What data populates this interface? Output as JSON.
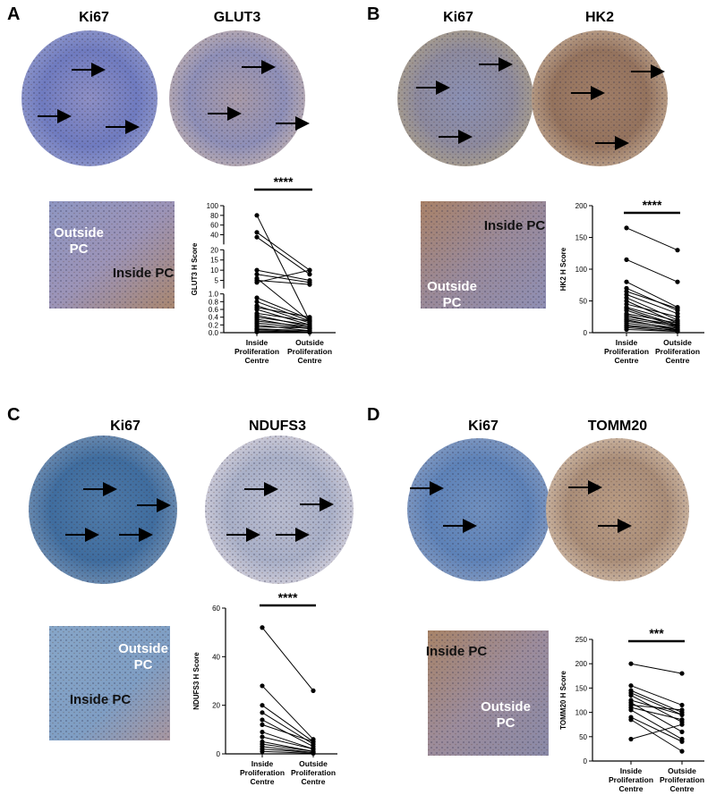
{
  "panels": [
    {
      "label": "A",
      "image_titles": [
        "Ki67",
        "GLUT3"
      ],
      "inset_labels": [
        {
          "text": "Outside PC",
          "color": "#ffffff"
        },
        {
          "text": "Inside PC",
          "color": "#111111"
        }
      ]
    },
    {
      "label": "B",
      "image_titles": [
        "Ki67",
        "HK2"
      ],
      "inset_labels": [
        {
          "text": "Inside PC",
          "color": "#111111"
        },
        {
          "text": "Outside PC",
          "color": "#ffffff"
        }
      ]
    },
    {
      "label": "C",
      "image_titles": [
        "Ki67",
        "NDUFS3"
      ],
      "inset_labels": [
        {
          "text": "Outside PC",
          "color": "#ffffff"
        },
        {
          "text": "Inside PC",
          "color": "#111111"
        }
      ]
    },
    {
      "label": "D",
      "image_titles": [
        "Ki67",
        "TOMM20"
      ],
      "inset_labels": [
        {
          "text": "Inside PC",
          "color": "#111111"
        },
        {
          "text": "Outside PC",
          "color": "#ffffff"
        }
      ]
    }
  ],
  "chart_data": [
    {
      "type": "paired",
      "y_label": "GLUT3 H Score",
      "significance": "****",
      "color": "#000000",
      "categories": [
        "Inside Proliferation Centre",
        "Outside Proliferation Centre"
      ],
      "ybreaks": [
        [
          0,
          1
        ],
        [
          1,
          20
        ],
        [
          20,
          100
        ]
      ],
      "ylim": [
        0,
        100
      ],
      "yticks": [
        {
          "value": 0,
          "label": "0.0"
        },
        0.2,
        0.4,
        0.6,
        0.8,
        {
          "value": 1,
          "label": "1.0"
        },
        5,
        10,
        15,
        20,
        40,
        60,
        80,
        100
      ],
      "values": [
        [
          80,
          0.3
        ],
        [
          45,
          10
        ],
        [
          35,
          8
        ],
        [
          10,
          5
        ],
        [
          8,
          4
        ],
        [
          6,
          0.3
        ],
        [
          5,
          3
        ],
        [
          4,
          10
        ],
        [
          0.9,
          0.35
        ],
        [
          0.8,
          0.3
        ],
        [
          0.7,
          0.25
        ],
        [
          0.65,
          0.4
        ],
        [
          0.6,
          0.2
        ],
        [
          0.5,
          0.3
        ],
        [
          0.45,
          0.15
        ],
        [
          0.4,
          0.2
        ],
        [
          0.35,
          0.1
        ],
        [
          0.3,
          0.15
        ],
        [
          0.25,
          0.1
        ],
        [
          0.2,
          0.05
        ],
        [
          0.15,
          0.12
        ],
        [
          0.1,
          0.05
        ],
        [
          0.08,
          0.02
        ],
        [
          0.05,
          0.01
        ],
        [
          0.02,
          0.01
        ]
      ]
    },
    {
      "type": "paired",
      "y_label": "HK2 H Score",
      "significance": "****",
      "color": "#000000",
      "categories": [
        "Inside Proliferation Centre",
        "Outside Proliferation Centre"
      ],
      "ylim": [
        0,
        200
      ],
      "yticks": [
        0,
        50,
        100,
        150,
        200
      ],
      "values": [
        [
          165,
          130
        ],
        [
          115,
          80
        ],
        [
          80,
          40
        ],
        [
          70,
          35
        ],
        [
          65,
          38
        ],
        [
          60,
          30
        ],
        [
          55,
          20
        ],
        [
          50,
          15
        ],
        [
          45,
          25
        ],
        [
          40,
          18
        ],
        [
          38,
          12
        ],
        [
          35,
          10
        ],
        [
          30,
          15
        ],
        [
          28,
          8
        ],
        [
          25,
          12
        ],
        [
          22,
          10
        ],
        [
          20,
          5
        ],
        [
          18,
          7
        ],
        [
          15,
          5
        ],
        [
          12,
          3
        ],
        [
          10,
          4
        ],
        [
          8,
          2
        ],
        [
          5,
          2
        ]
      ]
    },
    {
      "type": "paired",
      "y_label": "NDUFS3 H Score",
      "significance": "****",
      "color": "#000000",
      "categories": [
        "Inside Proliferation Centre",
        "Outside Proliferation Centre"
      ],
      "ylim": [
        0,
        60
      ],
      "yticks": [
        0,
        20,
        40,
        60
      ],
      "values": [
        [
          52,
          26
        ],
        [
          28,
          6
        ],
        [
          20,
          5
        ],
        [
          17,
          4
        ],
        [
          14,
          3
        ],
        [
          12,
          5
        ],
        [
          9,
          2
        ],
        [
          7,
          2
        ],
        [
          5,
          1
        ],
        [
          4,
          1
        ],
        [
          3,
          0.5
        ],
        [
          2,
          0.5
        ],
        [
          1,
          0.2
        ]
      ]
    },
    {
      "type": "paired",
      "y_label": "TOMM20 H Score",
      "significance": "***",
      "color": "#000000",
      "categories": [
        "Inside Proliferation Centre",
        "Outside Proliferation Centre"
      ],
      "ylim": [
        0,
        250
      ],
      "yticks": [
        0,
        50,
        100,
        150,
        200,
        250
      ],
      "values": [
        [
          200,
          180
        ],
        [
          155,
          115
        ],
        [
          145,
          100
        ],
        [
          140,
          95
        ],
        [
          135,
          80
        ],
        [
          125,
          95
        ],
        [
          120,
          60
        ],
        [
          115,
          105
        ],
        [
          110,
          85
        ],
        [
          105,
          45
        ],
        [
          90,
          40
        ],
        [
          85,
          20
        ],
        [
          45,
          75
        ]
      ]
    }
  ]
}
